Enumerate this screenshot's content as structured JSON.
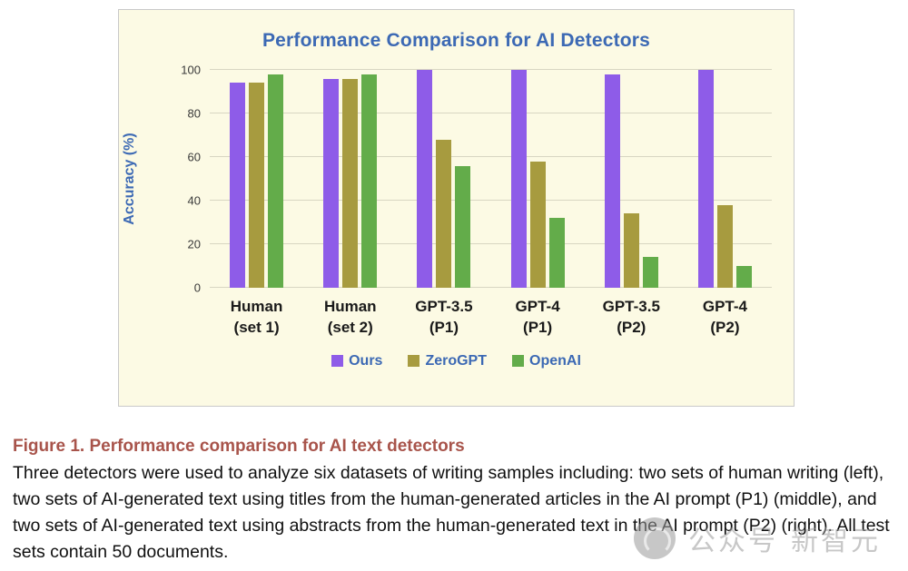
{
  "chart_data": {
    "type": "bar",
    "title": "Performance Comparison for AI Detectors",
    "xlabel": "",
    "ylabel": "Accuracy (%)",
    "ylim": [
      0,
      100
    ],
    "yticks": [
      0,
      20,
      40,
      60,
      80,
      100
    ],
    "grid": true,
    "legend_position": "bottom",
    "categories": [
      "Human\n(set 1)",
      "Human\n(set 2)",
      "GPT-3.5\n(P1)",
      "GPT-4\n(P1)",
      "GPT-3.5\n(P2)",
      "GPT-4\n(P2)"
    ],
    "series": [
      {
        "name": "Ours",
        "color": "#8E5CE8",
        "values": [
          94,
          96,
          100,
          100,
          98,
          100
        ]
      },
      {
        "name": "ZeroGPT",
        "color": "#A79B3F",
        "values": [
          94,
          96,
          68,
          58,
          34,
          38
        ]
      },
      {
        "name": "OpenAI",
        "color": "#63AC4A",
        "values": [
          98,
          98,
          56,
          32,
          14,
          10
        ]
      }
    ],
    "colors": {
      "title_text": "#3C69B4",
      "panel_background": "#FCFAE4",
      "caption_text": "#A8544B"
    }
  },
  "figure": {
    "caption": "Figure 1.  Performance comparison for AI text detectors",
    "description": "Three detectors were used to analyze six datasets of writing samples including: two sets of human writing (left), two sets of AI-generated text using titles from the human-generated articles in the AI prompt (P1) (middle), and two sets of AI-generated text using abstracts from the human-generated text in the AI prompt (P2) (right). All test sets contain 50 documents."
  },
  "watermark": {
    "text1": "公众号",
    "text2": "新智元"
  }
}
